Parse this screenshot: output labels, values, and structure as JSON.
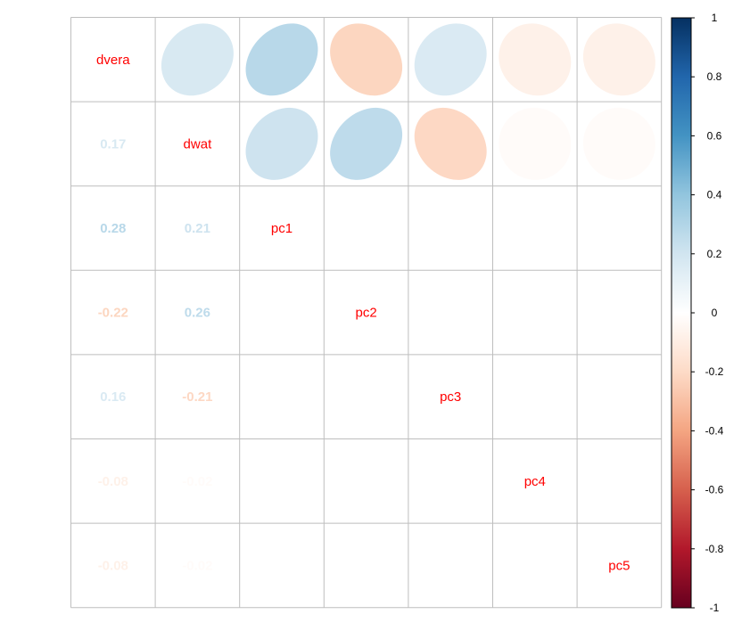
{
  "chart_data": {
    "type": "heatmap",
    "subtype": "correlation-matrix",
    "variables": [
      "dvera",
      "dwat",
      "pc1",
      "pc2",
      "pc3",
      "pc4",
      "pc5"
    ],
    "matrix": [
      [
        1.0,
        0.17,
        0.28,
        -0.22,
        0.16,
        -0.08,
        -0.08
      ],
      [
        0.17,
        1.0,
        0.21,
        0.26,
        -0.21,
        -0.02,
        -0.02
      ],
      [
        0.28,
        0.21,
        1.0,
        0.0,
        0.0,
        0.0,
        0.0
      ],
      [
        -0.22,
        0.26,
        0.0,
        1.0,
        0.0,
        0.0,
        0.0
      ],
      [
        0.16,
        -0.21,
        0.0,
        0.0,
        1.0,
        0.0,
        0.0
      ],
      [
        -0.08,
        -0.02,
        0.0,
        0.0,
        0.0,
        1.0,
        0.0
      ],
      [
        -0.08,
        -0.02,
        0.0,
        0.0,
        0.0,
        0.0,
        1.0
      ]
    ],
    "upper_method": "ellipse",
    "lower_method": "number",
    "diagonal": "labels",
    "lower_labels": [
      [
        "0.17"
      ],
      [
        "0.28",
        "0.21"
      ],
      [
        "-0.22",
        "0.26"
      ],
      [
        "0.16",
        "-0.21"
      ],
      [
        "-0.08",
        "-0.02"
      ],
      [
        "-0.08",
        "-0.02"
      ]
    ],
    "label_color": "#ff0000",
    "colorbar": {
      "range": [
        -1,
        1
      ],
      "ticks": [
        "1",
        "0.8",
        "0.6",
        "0.4",
        "0.2",
        "0",
        "-0.2",
        "-0.4",
        "-0.6",
        "-0.8",
        "-1"
      ],
      "low_color": "#67001f",
      "mid_color": "#ffffff",
      "high_color": "#053061"
    },
    "grid": true,
    "legend_position": "right"
  }
}
